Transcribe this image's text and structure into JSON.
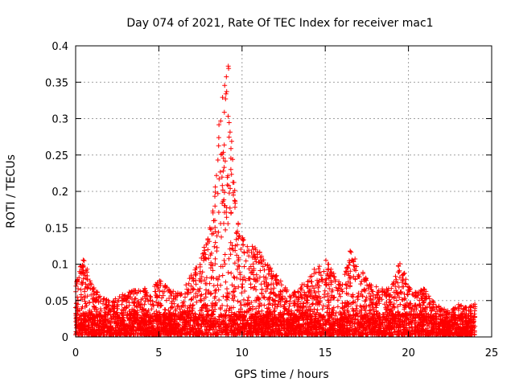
{
  "chart_data": {
    "type": "scatter",
    "title": "Day 074 of 2021, Rate Of TEC Index for receiver mac1",
    "xlabel": "GPS time / hours",
    "ylabel": "ROTI / TECUs",
    "xlim": [
      0,
      25
    ],
    "ylim": [
      0,
      0.4
    ],
    "x_ticks": [
      0,
      5,
      10,
      15,
      20,
      25
    ],
    "y_ticks": [
      0,
      0.05,
      0.1,
      0.15,
      0.2,
      0.25,
      0.3,
      0.35,
      0.4
    ],
    "x_tick_labels": [
      "0",
      "5",
      "10",
      "15",
      "20",
      "25"
    ],
    "y_tick_labels": [
      "0",
      "0.05",
      "0.1",
      "0.15",
      "0.2",
      "0.25",
      "0.3",
      "0.35",
      "0.4"
    ],
    "grid": true,
    "marker": "+",
    "color": "#ff0000",
    "profile": {
      "description": "approximate upper envelope of ROTI vs GPS hour (data-space points), used to reconstruct the dense point cloud",
      "x": [
        0.0,
        0.3,
        0.5,
        1.0,
        1.5,
        2.0,
        2.5,
        3.0,
        3.5,
        4.0,
        4.5,
        5.0,
        5.5,
        6.0,
        6.5,
        7.0,
        7.5,
        8.0,
        8.3,
        8.6,
        8.9,
        9.1,
        9.3,
        9.5,
        9.8,
        10.0,
        10.5,
        11.0,
        11.5,
        12.0,
        12.5,
        13.0,
        13.5,
        14.0,
        14.5,
        15.0,
        15.5,
        16.0,
        16.5,
        17.0,
        17.5,
        18.0,
        18.5,
        19.0,
        19.5,
        20.0,
        20.5,
        21.0,
        21.5,
        22.0,
        22.5,
        23.0,
        23.5,
        24.0
      ],
      "y": [
        0.07,
        0.1,
        0.11,
        0.07,
        0.06,
        0.05,
        0.055,
        0.06,
        0.065,
        0.07,
        0.065,
        0.08,
        0.07,
        0.06,
        0.065,
        0.09,
        0.11,
        0.14,
        0.2,
        0.3,
        0.34,
        0.39,
        0.35,
        0.22,
        0.15,
        0.14,
        0.13,
        0.12,
        0.1,
        0.09,
        0.07,
        0.06,
        0.07,
        0.08,
        0.1,
        0.11,
        0.09,
        0.07,
        0.12,
        0.1,
        0.08,
        0.07,
        0.07,
        0.07,
        0.11,
        0.07,
        0.06,
        0.07,
        0.05,
        0.04,
        0.035,
        0.045,
        0.04,
        0.05
      ]
    },
    "x_range_of_data": [
      0,
      24
    ]
  }
}
